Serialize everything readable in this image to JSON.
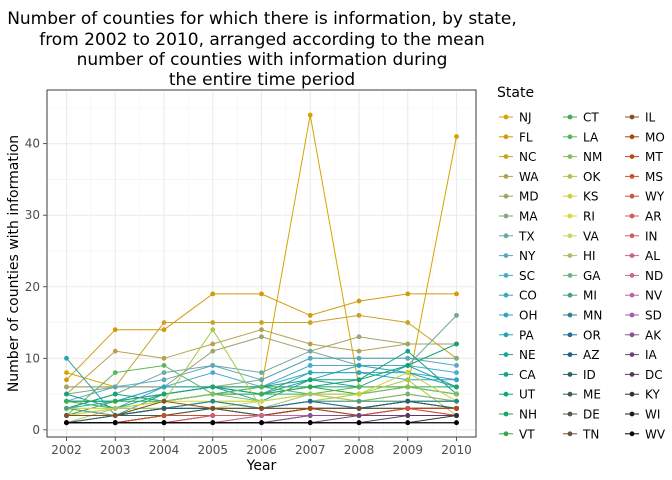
{
  "chart_data": {
    "type": "line",
    "title_lines": [
      "Number of counties for which there is information, by state,",
      "from 2002 to 2010, arranged according to the mean",
      "number of counties with information during",
      "the entire time period"
    ],
    "xlabel": "Year",
    "ylabel": "Number of counties with information",
    "x": [
      2002,
      2003,
      2004,
      2005,
      2006,
      2007,
      2008,
      2009,
      2010
    ],
    "xlim": [
      2001.6,
      2010.4
    ],
    "ylim": [
      -1,
      47.5
    ],
    "yticks": [
      0,
      10,
      20,
      30,
      40
    ],
    "grid": true,
    "legend": {
      "title": "State",
      "placement": "right"
    },
    "series": [
      {
        "name": "NJ",
        "color": "#d4a500",
        "values": [
          8,
          6,
          6,
          6,
          6,
          44,
          6,
          6,
          41
        ]
      },
      {
        "name": "FL",
        "color": "#d49a08",
        "values": [
          7,
          14,
          14,
          19,
          19,
          16,
          18,
          19,
          19
        ]
      },
      {
        "name": "NC",
        "color": "#c9a227",
        "values": [
          6,
          6,
          15,
          15,
          15,
          15,
          16,
          15,
          10
        ]
      },
      {
        "name": "WA",
        "color": "#b5a24e",
        "values": [
          5,
          11,
          10,
          12,
          14,
          12,
          11,
          12,
          12
        ]
      },
      {
        "name": "MD",
        "color": "#9fa36d",
        "values": [
          6,
          6,
          6,
          11,
          13,
          11,
          13,
          12,
          12
        ]
      },
      {
        "name": "MA",
        "color": "#88a58a",
        "values": [
          5,
          6,
          6,
          6,
          7,
          10,
          10,
          10,
          10
        ]
      },
      {
        "name": "TX",
        "color": "#6fa5a3",
        "values": [
          3,
          5,
          8,
          9,
          8,
          11,
          9,
          9,
          16
        ]
      },
      {
        "name": "NY",
        "color": "#58a8c0",
        "values": [
          4,
          6,
          7,
          9,
          7,
          10,
          10,
          10,
          9
        ]
      },
      {
        "name": "SC",
        "color": "#47adc9",
        "values": [
          2,
          3,
          6,
          8,
          6,
          9,
          9,
          9,
          8
        ]
      },
      {
        "name": "CO",
        "color": "#3aa9c4",
        "values": [
          3,
          4,
          6,
          6,
          6,
          8,
          8,
          8,
          7
        ]
      },
      {
        "name": "OH",
        "color": "#2fa5bd",
        "values": [
          4,
          4,
          6,
          6,
          5,
          8,
          8,
          7,
          7
        ]
      },
      {
        "name": "PA",
        "color": "#26a1b0",
        "values": [
          10,
          2,
          5,
          6,
          4,
          7,
          9,
          8,
          6
        ]
      },
      {
        "name": "NE",
        "color": "#1fa19c",
        "values": [
          4,
          4,
          5,
          6,
          5,
          7,
          6,
          9,
          6
        ]
      },
      {
        "name": "CA",
        "color": "#17a087",
        "values": [
          5,
          3,
          5,
          6,
          5,
          6,
          7,
          11,
          5
        ]
      },
      {
        "name": "UT",
        "color": "#12a275",
        "values": [
          3,
          5,
          4,
          5,
          6,
          7,
          7,
          9,
          12
        ]
      },
      {
        "name": "NH",
        "color": "#1ea565",
        "values": [
          4,
          4,
          5,
          6,
          6,
          6,
          6,
          6,
          6
        ]
      },
      {
        "name": "VT",
        "color": "#2fa84a",
        "values": [
          2,
          4,
          4,
          5,
          5,
          6,
          5,
          6,
          5
        ]
      },
      {
        "name": "CT",
        "color": "#3fad55",
        "values": [
          4,
          3,
          4,
          5,
          5,
          5,
          5,
          6,
          5
        ]
      },
      {
        "name": "LA",
        "color": "#5bb55c",
        "values": [
          2,
          8,
          9,
          5,
          6,
          5,
          6,
          6,
          5
        ]
      },
      {
        "name": "NM",
        "color": "#83bf56",
        "values": [
          3,
          3,
          4,
          5,
          4,
          5,
          5,
          6,
          5
        ]
      },
      {
        "name": "OK",
        "color": "#a8c84a",
        "values": [
          3,
          2,
          4,
          14,
          3,
          4,
          5,
          7,
          2
        ]
      },
      {
        "name": "KS",
        "color": "#c9d23c",
        "values": [
          2,
          3,
          3,
          4,
          4,
          5,
          5,
          8,
          4
        ]
      },
      {
        "name": "RI",
        "color": "#d6d93f",
        "values": [
          3,
          3,
          4,
          4,
          4,
          5,
          4,
          5,
          4
        ]
      },
      {
        "name": "VA",
        "color": "#c8d85a",
        "values": [
          2,
          3,
          3,
          3,
          4,
          5,
          4,
          5,
          4
        ]
      },
      {
        "name": "HI",
        "color": "#a8c06a",
        "values": [
          1,
          3,
          3,
          4,
          3,
          5,
          4,
          4,
          4
        ]
      },
      {
        "name": "GA",
        "color": "#78b07a",
        "values": [
          2,
          2,
          3,
          4,
          3,
          4,
          4,
          5,
          4
        ]
      },
      {
        "name": "MI",
        "color": "#4d9c87",
        "values": [
          3,
          2,
          3,
          4,
          3,
          4,
          4,
          4,
          4
        ]
      },
      {
        "name": "MN",
        "color": "#2b868f",
        "values": [
          2,
          2,
          3,
          4,
          3,
          4,
          3,
          4,
          4
        ]
      },
      {
        "name": "OR",
        "color": "#1f6f95",
        "values": [
          2,
          2,
          3,
          3,
          3,
          4,
          3,
          4,
          3
        ]
      },
      {
        "name": "AZ",
        "color": "#1f6280",
        "values": [
          2,
          2,
          3,
          3,
          3,
          3,
          3,
          4,
          3
        ]
      },
      {
        "name": "ID",
        "color": "#2a5f6a",
        "values": [
          1,
          2,
          3,
          3,
          2,
          3,
          3,
          4,
          3
        ]
      },
      {
        "name": "ME",
        "color": "#3d5c5a",
        "values": [
          1,
          2,
          2,
          3,
          2,
          3,
          3,
          3,
          3
        ]
      },
      {
        "name": "DE",
        "color": "#4f5a48",
        "values": [
          1,
          1,
          2,
          3,
          2,
          3,
          3,
          3,
          3
        ]
      },
      {
        "name": "TN",
        "color": "#6a5538",
        "values": [
          1,
          1,
          2,
          2,
          2,
          3,
          3,
          3,
          3
        ]
      },
      {
        "name": "IL",
        "color": "#8a4e1c",
        "values": [
          2,
          2,
          4,
          3,
          3,
          3,
          2,
          3,
          3
        ]
      },
      {
        "name": "MO",
        "color": "#a44b12",
        "values": [
          1,
          1,
          2,
          2,
          2,
          3,
          2,
          3,
          3
        ]
      },
      {
        "name": "MT",
        "color": "#bb4a18",
        "values": [
          1,
          1,
          2,
          2,
          2,
          2,
          2,
          3,
          3
        ]
      },
      {
        "name": "MS",
        "color": "#c9502a",
        "values": [
          1,
          1,
          2,
          2,
          2,
          2,
          2,
          3,
          2
        ]
      },
      {
        "name": "WY",
        "color": "#cf5540",
        "values": [
          1,
          1,
          1,
          2,
          2,
          2,
          2,
          3,
          2
        ]
      },
      {
        "name": "AR",
        "color": "#d15a55",
        "values": [
          1,
          1,
          1,
          2,
          2,
          2,
          2,
          2,
          2
        ]
      },
      {
        "name": "IN",
        "color": "#d05f6a",
        "values": [
          1,
          1,
          1,
          2,
          2,
          2,
          2,
          2,
          2
        ]
      },
      {
        "name": "AL",
        "color": "#cc637f",
        "values": [
          1,
          1,
          1,
          1,
          2,
          2,
          2,
          2,
          2
        ]
      },
      {
        "name": "ND",
        "color": "#c76795",
        "values": [
          1,
          1,
          1,
          1,
          2,
          2,
          2,
          2,
          2
        ]
      },
      {
        "name": "NV",
        "color": "#b866a8",
        "values": [
          1,
          1,
          1,
          1,
          1,
          2,
          2,
          2,
          2
        ]
      },
      {
        "name": "SD",
        "color": "#a060a0",
        "values": [
          1,
          1,
          1,
          1,
          1,
          2,
          2,
          2,
          2
        ]
      },
      {
        "name": "AK",
        "color": "#865290",
        "values": [
          1,
          1,
          1,
          1,
          1,
          2,
          2,
          2,
          2
        ]
      },
      {
        "name": "IA",
        "color": "#6c4477",
        "values": [
          1,
          1,
          1,
          1,
          1,
          1,
          2,
          2,
          2
        ]
      },
      {
        "name": "DC",
        "color": "#553a5c",
        "values": [
          1,
          1,
          1,
          1,
          1,
          1,
          1,
          2,
          2
        ]
      },
      {
        "name": "KY",
        "color": "#3a2a3d",
        "values": [
          1,
          1,
          1,
          1,
          1,
          1,
          1,
          1,
          2
        ]
      },
      {
        "name": "WI",
        "color": "#1e1a1f",
        "values": [
          1,
          1,
          1,
          1,
          1,
          1,
          1,
          1,
          1
        ]
      },
      {
        "name": "WV",
        "color": "#000000",
        "values": [
          1,
          1,
          1,
          1,
          1,
          1,
          1,
          1,
          1
        ]
      }
    ]
  }
}
